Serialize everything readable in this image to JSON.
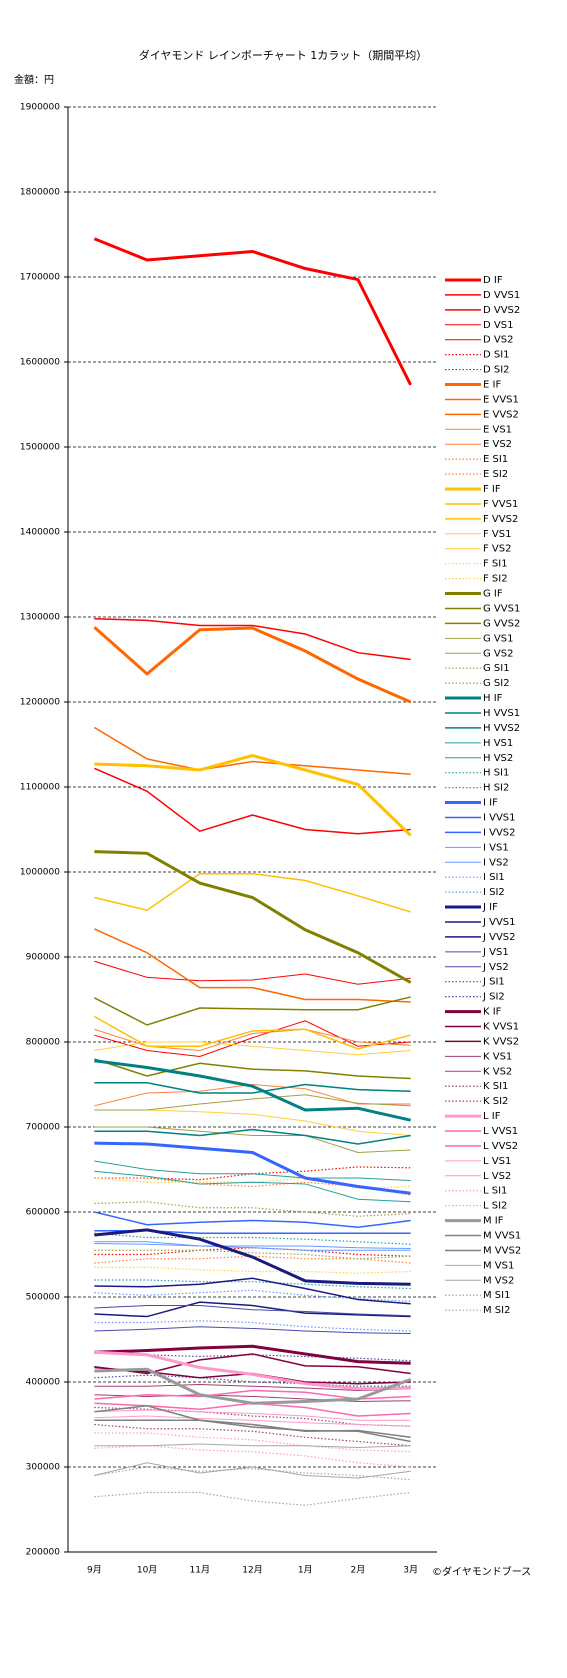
{
  "chart_data": {
    "type": "line",
    "title": "ダイヤモンド レインボーチャート 1カラット（期間平均）",
    "y_label": "金額：円",
    "footer": "©ダイヤモンドブース",
    "categories": [
      "9月",
      "10月",
      "11月",
      "12月",
      "1月",
      "2月",
      "3月"
    ],
    "ylim": [
      200000,
      1900000
    ],
    "yticks": [
      200000,
      300000,
      400000,
      500000,
      600000,
      700000,
      800000,
      900000,
      1000000,
      1100000,
      1200000,
      1300000,
      1400000,
      1500000,
      1600000,
      1700000,
      1800000,
      1900000
    ],
    "grid": true,
    "legend": "right",
    "series": [
      {
        "name": "D IF",
        "color": "#ff0000",
        "width": 3,
        "dash": "solid",
        "values": [
          1745000,
          1720000,
          1725000,
          1730000,
          1710000,
          1697000,
          1573000
        ]
      },
      {
        "name": "D VVS1",
        "color": "#ff0000",
        "width": 1.5,
        "dash": "solid",
        "values": [
          1298000,
          1296000,
          1290000,
          1290000,
          1280000,
          1258000,
          1250000
        ]
      },
      {
        "name": "D VVS2",
        "color": "#ff0000",
        "width": 1.5,
        "dash": "solid",
        "values": [
          1122000,
          1095000,
          1048000,
          1067000,
          1050000,
          1045000,
          1050000
        ]
      },
      {
        "name": "D VS1",
        "color": "#ff0000",
        "width": 1,
        "dash": "solid",
        "values": [
          895000,
          876000,
          872000,
          873000,
          880000,
          868000,
          875000
        ]
      },
      {
        "name": "D VS2",
        "color": "#ff0000",
        "width": 1,
        "dash": "solid",
        "values": [
          808000,
          790000,
          783000,
          805000,
          825000,
          795000,
          800000
        ]
      },
      {
        "name": "D SI1",
        "color": "#ff0000",
        "width": 1.2,
        "dash": "dotted",
        "values": [
          640000,
          640000,
          638000,
          645000,
          648000,
          653000,
          652000
        ]
      },
      {
        "name": "D SI2",
        "color": "#ff0000",
        "width": 1.2,
        "dash": "dotted",
        "values": [
          550000,
          550000,
          555000,
          558000,
          555000,
          550000,
          548000
        ]
      },
      {
        "name": "E IF",
        "color": "#ff6600",
        "width": 3,
        "dash": "solid",
        "values": [
          1288000,
          1233000,
          1285000,
          1287000,
          1260000,
          1227000,
          1200000
        ]
      },
      {
        "name": "E VVS1",
        "color": "#ff6600",
        "width": 1.5,
        "dash": "solid",
        "values": [
          1170000,
          1133000,
          1120000,
          1130000,
          1125000,
          1120000,
          1115000
        ]
      },
      {
        "name": "E VVS2",
        "color": "#ff6600",
        "width": 1.5,
        "dash": "solid",
        "values": [
          933000,
          905000,
          864000,
          864000,
          850000,
          850000,
          847000
        ]
      },
      {
        "name": "E VS1",
        "color": "#ff8040",
        "width": 1,
        "dash": "solid",
        "values": [
          815000,
          795000,
          790000,
          810000,
          815000,
          800000,
          796000
        ]
      },
      {
        "name": "E VS2",
        "color": "#ff8040",
        "width": 1,
        "dash": "solid",
        "values": [
          725000,
          740000,
          742000,
          750000,
          745000,
          727000,
          727000
        ]
      },
      {
        "name": "E SI1",
        "color": "#ff8040",
        "width": 1.2,
        "dash": "dotted",
        "values": [
          640000,
          640000,
          633000,
          630000,
          635000,
          630000,
          620000
        ]
      },
      {
        "name": "E SI2",
        "color": "#ff8040",
        "width": 1.2,
        "dash": "dotted",
        "values": [
          540000,
          545000,
          545000,
          548000,
          545000,
          545000,
          540000
        ]
      },
      {
        "name": "F IF",
        "color": "#ffc000",
        "width": 3,
        "dash": "solid",
        "values": [
          1127000,
          1125000,
          1120000,
          1137000,
          1120000,
          1103000,
          1043000
        ]
      },
      {
        "name": "F VVS1",
        "color": "#ffc000",
        "width": 1.5,
        "dash": "solid",
        "values": [
          970000,
          955000,
          998000,
          998000,
          990000,
          972000,
          953000
        ]
      },
      {
        "name": "F VVS2",
        "color": "#ffc000",
        "width": 1.5,
        "dash": "solid",
        "values": [
          830000,
          795000,
          795000,
          813000,
          815000,
          792000,
          808000
        ]
      },
      {
        "name": "F VS1",
        "color": "#ffd040",
        "width": 1,
        "dash": "solid",
        "values": [
          790000,
          800000,
          800000,
          795000,
          790000,
          785000,
          790000
        ]
      },
      {
        "name": "F VS2",
        "color": "#ffd040",
        "width": 1,
        "dash": "solid",
        "values": [
          720000,
          720000,
          718000,
          715000,
          707000,
          695000,
          690000
        ]
      },
      {
        "name": "F SI1",
        "color": "#ffd040",
        "width": 1.2,
        "dash": "dotted",
        "values": [
          640000,
          635000,
          635000,
          635000,
          640000,
          628000,
          630000
        ]
      },
      {
        "name": "F SI2",
        "color": "#ffd040",
        "width": 1.2,
        "dash": "dotted",
        "values": [
          535000,
          535000,
          532000,
          530000,
          530000,
          528000,
          530000
        ]
      },
      {
        "name": "G IF",
        "color": "#808000",
        "width": 3,
        "dash": "solid",
        "values": [
          1024000,
          1022000,
          987000,
          970000,
          932000,
          905000,
          870000
        ]
      },
      {
        "name": "G VVS1",
        "color": "#808000",
        "width": 1.5,
        "dash": "solid",
        "values": [
          852000,
          820000,
          840000,
          839000,
          838000,
          838000,
          853000
        ]
      },
      {
        "name": "G VVS2",
        "color": "#808000",
        "width": 1.5,
        "dash": "solid",
        "values": [
          780000,
          760000,
          775000,
          768000,
          766000,
          760000,
          757000
        ]
      },
      {
        "name": "G VS1",
        "color": "#a0a040",
        "width": 1,
        "dash": "solid",
        "values": [
          720000,
          720000,
          727000,
          733000,
          738000,
          728000,
          725000
        ]
      },
      {
        "name": "G VS2",
        "color": "#a0a040",
        "width": 1,
        "dash": "solid",
        "values": [
          700000,
          700000,
          695000,
          690000,
          690000,
          670000,
          673000
        ]
      },
      {
        "name": "G SI1",
        "color": "#a0a040",
        "width": 1.2,
        "dash": "dotted",
        "values": [
          610000,
          612000,
          605000,
          605000,
          600000,
          595000,
          598000
        ]
      },
      {
        "name": "G SI2",
        "color": "#a0a040",
        "width": 1.2,
        "dash": "dotted",
        "values": [
          555000,
          555000,
          555000,
          552000,
          550000,
          545000,
          548000
        ]
      },
      {
        "name": "H IF",
        "color": "#008080",
        "width": 3,
        "dash": "solid",
        "values": [
          778000,
          770000,
          760000,
          748000,
          720000,
          722000,
          708000
        ]
      },
      {
        "name": "H VVS1",
        "color": "#008080",
        "width": 1.5,
        "dash": "solid",
        "values": [
          752000,
          752000,
          740000,
          740000,
          750000,
          744000,
          742000
        ]
      },
      {
        "name": "H VVS2",
        "color": "#008080",
        "width": 1.5,
        "dash": "solid",
        "values": [
          695000,
          695000,
          690000,
          697000,
          690000,
          680000,
          690000
        ]
      },
      {
        "name": "H VS1",
        "color": "#20a0a0",
        "width": 1,
        "dash": "solid",
        "values": [
          660000,
          650000,
          645000,
          645000,
          640000,
          640000,
          637000
        ]
      },
      {
        "name": "H VS2",
        "color": "#20a0a0",
        "width": 1,
        "dash": "solid",
        "values": [
          648000,
          642000,
          633000,
          635000,
          633000,
          615000,
          612000
        ]
      },
      {
        "name": "H SI1",
        "color": "#20a0a0",
        "width": 1.2,
        "dash": "dotted",
        "values": [
          575000,
          570000,
          570000,
          570000,
          568000,
          565000,
          562000
        ]
      },
      {
        "name": "H SI2",
        "color": "#20a0a0",
        "width": 1.2,
        "dash": "dotted",
        "values": [
          520000,
          520000,
          518000,
          518000,
          515000,
          512000,
          510000
        ]
      },
      {
        "name": "I IF",
        "color": "#3366ff",
        "width": 3,
        "dash": "solid",
        "values": [
          681000,
          680000,
          675000,
          670000,
          640000,
          630000,
          622000
        ]
      },
      {
        "name": "I VVS1",
        "color": "#3366ff",
        "width": 1.5,
        "dash": "solid",
        "values": [
          600000,
          585000,
          588000,
          590000,
          588000,
          582000,
          590000
        ]
      },
      {
        "name": "I VVS2",
        "color": "#3366ff",
        "width": 1.5,
        "dash": "solid",
        "values": [
          578000,
          578000,
          575000,
          575000,
          575000,
          575000,
          575000
        ]
      },
      {
        "name": "I VS1",
        "color": "#6699ff",
        "width": 1,
        "dash": "solid",
        "values": [
          565000,
          565000,
          560000,
          560000,
          560000,
          558000,
          557000
        ]
      },
      {
        "name": "I VS2",
        "color": "#6699ff",
        "width": 1,
        "dash": "solid",
        "values": [
          563000,
          562000,
          560000,
          558000,
          555000,
          555000,
          555000
        ]
      },
      {
        "name": "I SI1",
        "color": "#6699ff",
        "width": 1.2,
        "dash": "dotted",
        "values": [
          505000,
          502000,
          505000,
          508000,
          502000,
          498000,
          495000
        ]
      },
      {
        "name": "I SI2",
        "color": "#6699ff",
        "width": 1.2,
        "dash": "dotted",
        "values": [
          470000,
          470000,
          472000,
          470000,
          465000,
          462000,
          460000
        ]
      },
      {
        "name": "J IF",
        "color": "#1a1a80",
        "width": 3,
        "dash": "solid",
        "values": [
          573000,
          579000,
          568000,
          547000,
          519000,
          516000,
          515000
        ]
      },
      {
        "name": "J VVS1",
        "color": "#1a1a80",
        "width": 1.5,
        "dash": "solid",
        "values": [
          513000,
          512000,
          515000,
          522000,
          510000,
          497000,
          492000
        ]
      },
      {
        "name": "J VVS2",
        "color": "#1a1a80",
        "width": 1.5,
        "dash": "solid",
        "values": [
          480000,
          477000,
          494000,
          490000,
          481000,
          479000,
          477000
        ]
      },
      {
        "name": "J VS1",
        "color": "#4a4aa8",
        "width": 1,
        "dash": "solid",
        "values": [
          487000,
          490000,
          490000,
          485000,
          483000,
          480000,
          478000
        ]
      },
      {
        "name": "J VS2",
        "color": "#4a4aa8",
        "width": 1,
        "dash": "solid",
        "values": [
          460000,
          462000,
          465000,
          463000,
          460000,
          458000,
          457000
        ]
      },
      {
        "name": "J SI1",
        "color": "#4a4aa8",
        "width": 1.2,
        "dash": "dotted",
        "values": [
          435000,
          432000,
          430000,
          432000,
          430000,
          428000,
          425000
        ]
      },
      {
        "name": "J SI2",
        "color": "#4a4aa8",
        "width": 1.2,
        "dash": "dotted",
        "values": [
          405000,
          408000,
          405000,
          400000,
          398000,
          395000,
          395000
        ]
      },
      {
        "name": "K IF",
        "color": "#800040",
        "width": 3,
        "dash": "solid",
        "values": [
          435000,
          437000,
          440000,
          442000,
          433000,
          424000,
          422000
        ]
      },
      {
        "name": "K VVS1",
        "color": "#800040",
        "width": 1.5,
        "dash": "solid",
        "values": [
          418000,
          410000,
          426000,
          433000,
          419000,
          418000,
          410000
        ]
      },
      {
        "name": "K VVS2",
        "color": "#800040",
        "width": 1.5,
        "dash": "solid",
        "values": [
          417000,
          412000,
          405000,
          410000,
          400000,
          398000,
          400000
        ]
      },
      {
        "name": "K VS1",
        "color": "#a04070",
        "width": 1,
        "dash": "solid",
        "values": [
          395000,
          395000,
          397000,
          395000,
          393000,
          390000,
          392000
        ]
      },
      {
        "name": "K VS2",
        "color": "#a04070",
        "width": 1,
        "dash": "solid",
        "values": [
          385000,
          383000,
          385000,
          383000,
          380000,
          377000,
          378000
        ]
      },
      {
        "name": "K SI1",
        "color": "#a04070",
        "width": 1.2,
        "dash": "dotted",
        "values": [
          370000,
          368000,
          365000,
          360000,
          357000,
          350000,
          348000
        ]
      },
      {
        "name": "K SI2",
        "color": "#a04070",
        "width": 1.2,
        "dash": "dotted",
        "values": [
          350000,
          345000,
          345000,
          342000,
          335000,
          330000,
          325000
        ]
      },
      {
        "name": "L IF",
        "color": "#ff99cc",
        "width": 3,
        "dash": "solid",
        "values": [
          435000,
          432000,
          417000,
          409000,
          398000,
          392000,
          393000
        ]
      },
      {
        "name": "L VVS1",
        "color": "#ff66b3",
        "width": 1.5,
        "dash": "solid",
        "values": [
          380000,
          385000,
          383000,
          390000,
          388000,
          380000,
          383000
        ]
      },
      {
        "name": "L VVS2",
        "color": "#ff66b3",
        "width": 1.5,
        "dash": "solid",
        "values": [
          375000,
          372000,
          368000,
          375000,
          370000,
          360000,
          363000
        ]
      },
      {
        "name": "L VS1",
        "color": "#ff99cc",
        "width": 1,
        "dash": "solid",
        "values": [
          365000,
          367000,
          365000,
          363000,
          360000,
          355000,
          355000
        ]
      },
      {
        "name": "L VS2",
        "color": "#ff99cc",
        "width": 1,
        "dash": "solid",
        "values": [
          358000,
          360000,
          357000,
          355000,
          352000,
          350000,
          348000
        ]
      },
      {
        "name": "L SI1",
        "color": "#ff99cc",
        "width": 1.2,
        "dash": "dotted",
        "values": [
          340000,
          340000,
          335000,
          332000,
          325000,
          320000,
          318000
        ]
      },
      {
        "name": "L SI2",
        "color": "#ff99cc",
        "width": 1.2,
        "dash": "dotted",
        "values": [
          322000,
          325000,
          320000,
          318000,
          313000,
          305000,
          300000
        ]
      },
      {
        "name": "M IF",
        "color": "#999999",
        "width": 3,
        "dash": "solid",
        "values": [
          413000,
          415000,
          385000,
          375000,
          377000,
          380000,
          403000
        ]
      },
      {
        "name": "M VVS1",
        "color": "#808080",
        "width": 1.5,
        "dash": "solid",
        "values": [
          365000,
          372000,
          355000,
          347000,
          343000,
          342000,
          330000
        ]
      },
      {
        "name": "M VVS2",
        "color": "#808080",
        "width": 1.5,
        "dash": "solid",
        "values": [
          355000,
          355000,
          355000,
          350000,
          342000,
          343000,
          335000
        ]
      },
      {
        "name": "M VS1",
        "color": "#a6a6a6",
        "width": 1,
        "dash": "solid",
        "values": [
          325000,
          325000,
          327000,
          325000,
          325000,
          323000,
          325000
        ]
      },
      {
        "name": "M VS2",
        "color": "#a6a6a6",
        "width": 1,
        "dash": "solid",
        "values": [
          290000,
          305000,
          293000,
          300000,
          290000,
          287000,
          295000
        ]
      },
      {
        "name": "M SI1",
        "color": "#a6a6a6",
        "width": 1.2,
        "dash": "dotted",
        "values": [
          265000,
          270000,
          270000,
          260000,
          255000,
          263000,
          270000
        ]
      },
      {
        "name": "M SI2",
        "color": "#a6a6a6",
        "width": 1.2,
        "dash": "dotted",
        "values": [
          290000,
          300000,
          295000,
          298000,
          293000,
          290000,
          285000
        ]
      }
    ]
  }
}
